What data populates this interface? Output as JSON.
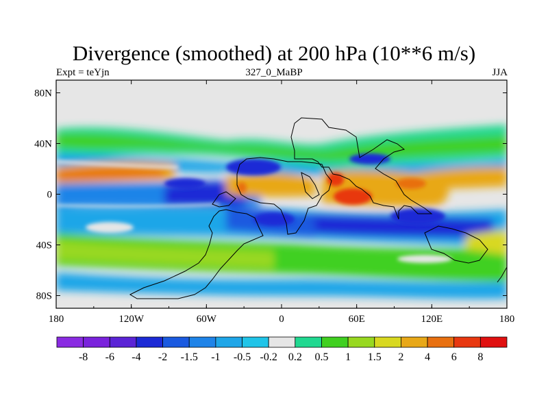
{
  "title": "Divergence (smoothed) at 200 hPa (10**6 m/s)",
  "subtitle_left": "Expt = teYjn",
  "subtitle_center": "327_0_MaBP",
  "subtitle_right": "JJA",
  "x_ticks": [
    {
      "lon": -180,
      "label": "180"
    },
    {
      "lon": -120,
      "label": "120W"
    },
    {
      "lon": -60,
      "label": "60W"
    },
    {
      "lon": 0,
      "label": "0"
    },
    {
      "lon": 60,
      "label": "60E"
    },
    {
      "lon": 120,
      "label": "120E"
    },
    {
      "lon": 180,
      "label": "180"
    }
  ],
  "y_ticks": [
    {
      "lat": 80,
      "label": "80N"
    },
    {
      "lat": 40,
      "label": "40N"
    },
    {
      "lat": 0,
      "label": "0"
    },
    {
      "lat": -40,
      "label": "40S"
    },
    {
      "lat": -80,
      "label": "80S"
    }
  ],
  "colorbar": {
    "colors": [
      "#8a2be2",
      "#7a22dc",
      "#5b24d6",
      "#1c2ad6",
      "#1a5ae0",
      "#1f84e8",
      "#1fa6e8",
      "#20c4e8",
      "#e6e6e6",
      "#20d890",
      "#40d020",
      "#98d820",
      "#d8d820",
      "#e8a818",
      "#e87010",
      "#e83810",
      "#e01010"
    ],
    "labels": [
      "-8",
      "-6",
      "-4",
      "-2",
      "-1.5",
      "-1",
      "-0.5",
      "-0.2",
      "0.2",
      "0.5",
      "1",
      "1.5",
      "2",
      "4",
      "6",
      "8"
    ]
  },
  "colors": {
    "missing": "#e6e6e6",
    "outline": "#000000"
  }
}
